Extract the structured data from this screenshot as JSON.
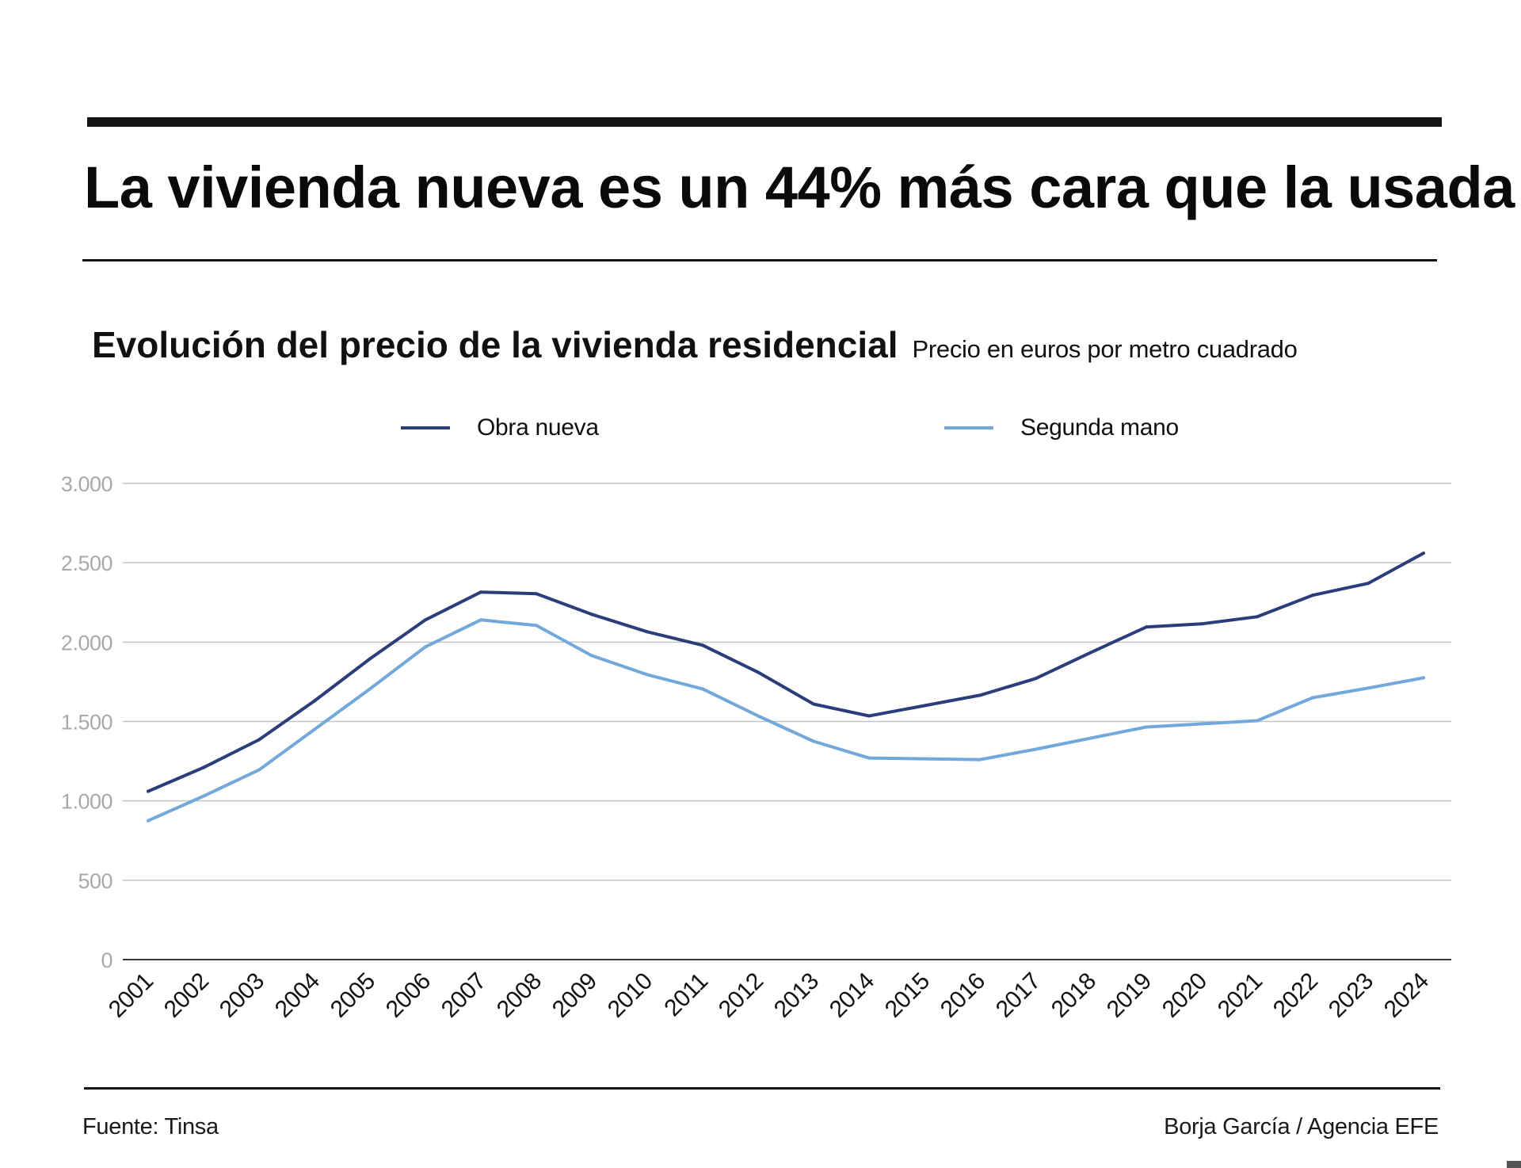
{
  "headline": "La vivienda nueva es un 44% más cara que la usada",
  "subtitle": "Evolución del precio de la vivienda residencial",
  "unit_note": "Precio en euros por metro cuadrado",
  "footer": {
    "source": "Fuente: Tinsa",
    "credit": "Borja García / Agencia EFE"
  },
  "colors": {
    "obra_nueva": "#2b3d7a",
    "segunda_mano": "#72a8da",
    "grid": "#c4c4c4",
    "tick_label": "#a9a9a9"
  },
  "chart_data": {
    "type": "line",
    "title": "Evolución del precio de la vivienda residencial",
    "subtitle": "Precio en euros por metro cuadrado",
    "xlabel": "",
    "ylabel": "",
    "ylim": [
      0,
      3000
    ],
    "yticks": [
      0,
      500,
      1000,
      1500,
      2000,
      2500,
      3000
    ],
    "ytick_labels": [
      "0",
      "500",
      "1.000",
      "1.500",
      "2.000",
      "2.500",
      "3.000"
    ],
    "grid": true,
    "legend_position": "top",
    "categories": [
      "2001",
      "2002",
      "2003",
      "2004",
      "2005",
      "2006",
      "2007",
      "2008",
      "2009",
      "2010",
      "2011",
      "2012",
      "2013",
      "2014",
      "2015",
      "2016",
      "2017",
      "2018",
      "2019",
      "2020",
      "2021",
      "2022",
      "2023",
      "2024"
    ],
    "series": [
      {
        "name": "Obra nueva",
        "color": "#2b3d7a",
        "values": [
          1060,
          1210,
          1385,
          1630,
          1895,
          2140,
          2315,
          2305,
          2175,
          2065,
          1980,
          1810,
          1610,
          1535,
          1600,
          1665,
          1770,
          1935,
          2095,
          2115,
          2160,
          2295,
          2370,
          2560
        ]
      },
      {
        "name": "Segunda mano",
        "color": "#72a8da",
        "values": [
          875,
          1030,
          1195,
          1450,
          1705,
          1970,
          2140,
          2105,
          1915,
          1795,
          1705,
          1535,
          1375,
          1270,
          1265,
          1260,
          1325,
          1395,
          1465,
          1485,
          1505,
          1650,
          1710,
          1775
        ]
      }
    ]
  }
}
